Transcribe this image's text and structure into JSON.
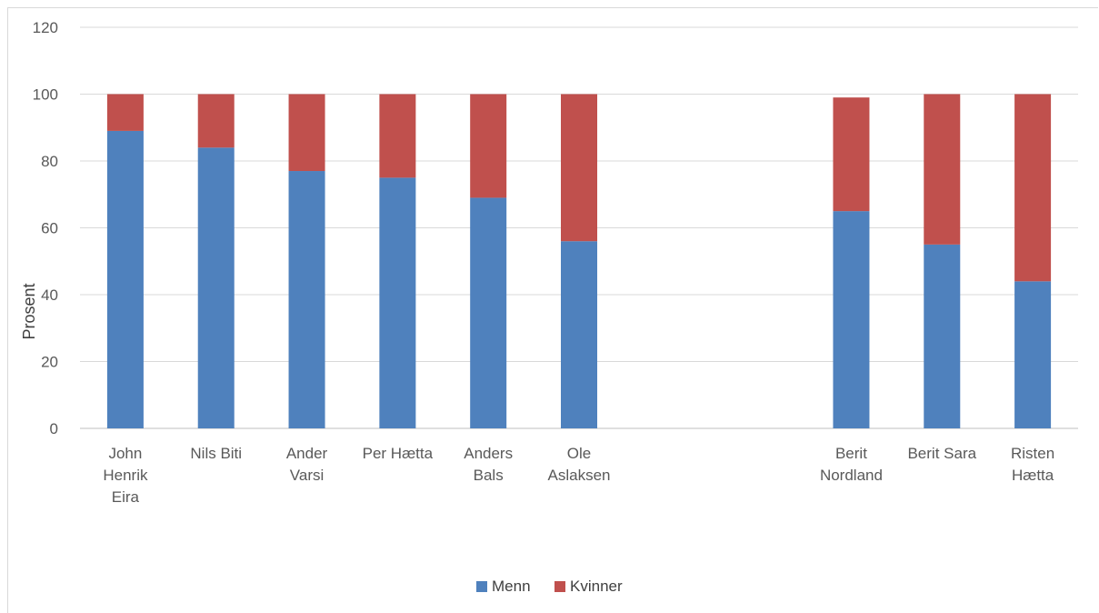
{
  "chart_data": {
    "type": "bar",
    "stacked": true,
    "title": "",
    "xlabel": "",
    "ylabel": "Prosent",
    "ylim": [
      0,
      120
    ],
    "yticks": [
      "0",
      "20",
      "40",
      "60",
      "80",
      "100",
      "120"
    ],
    "grid": true,
    "legend_position": "bottom",
    "categories": [
      [
        "John",
        "Henrik",
        "Eira"
      ],
      [
        "Nils Biti"
      ],
      [
        "Ander",
        "Varsi"
      ],
      [
        "Per Hætta"
      ],
      [
        "Anders",
        "Bals"
      ],
      [
        "Ole",
        "Aslaksen"
      ],
      [],
      [],
      [
        "Berit",
        "Nordland"
      ],
      [
        "Berit Sara"
      ],
      [
        "Risten",
        "Hætta"
      ]
    ],
    "series": [
      {
        "name": "Menn",
        "color": "#4f81bd",
        "values": [
          89,
          84,
          77,
          75,
          69,
          56,
          null,
          null,
          65,
          55,
          44
        ]
      },
      {
        "name": "Kvinner",
        "color": "#c0504d",
        "values": [
          11,
          16,
          23,
          25,
          31,
          44,
          null,
          null,
          34,
          45,
          56
        ]
      }
    ]
  }
}
